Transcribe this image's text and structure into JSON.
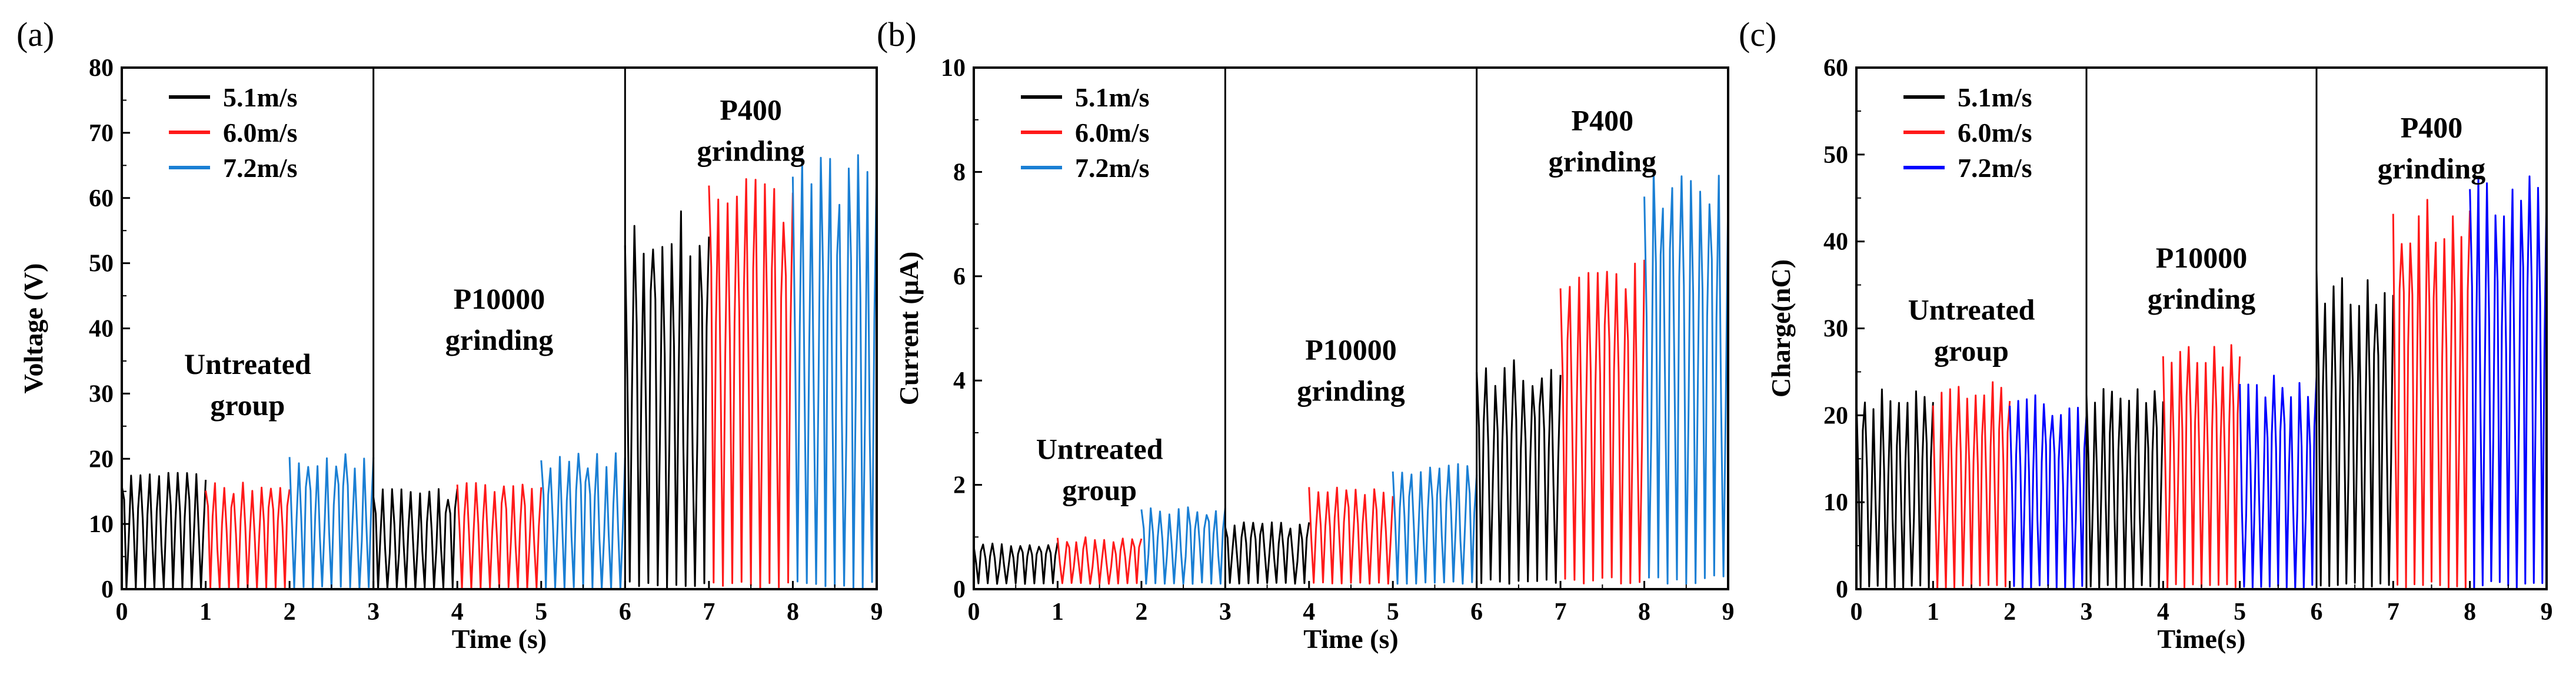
{
  "chart_data": [
    {
      "panel_label": "(a)",
      "type": "line",
      "title": "",
      "xlabel": "Time (s)",
      "ylabel": "Voltage (V)",
      "xlim": [
        0,
        9
      ],
      "ylim": [
        0,
        80
      ],
      "x_ticks": [
        "0",
        "1",
        "2",
        "3",
        "4",
        "5",
        "6",
        "7",
        "8",
        "9"
      ],
      "y_ticks": [
        "0",
        "10",
        "20",
        "30",
        "40",
        "50",
        "60",
        "70",
        "80"
      ],
      "group_dividers": [
        3,
        6
      ],
      "group_labels": [
        {
          "lines": [
            "Untreated",
            "group"
          ],
          "x": 1.5,
          "y": 33
        },
        {
          "lines": [
            "P10000",
            "grinding"
          ],
          "x": 4.5,
          "y": 43
        },
        {
          "lines": [
            "P400",
            "grinding"
          ],
          "x": 7.5,
          "y": 72
        }
      ],
      "legend": {
        "position": "top-left",
        "entries": [
          {
            "name": "5.1m/s",
            "color": "#000000"
          },
          {
            "name": "6.0m/s",
            "color": "#ff1a1a"
          },
          {
            "name": "7.2m/s",
            "color": "#1a7fd4"
          }
        ]
      },
      "series": [
        {
          "name": "5.1m/s",
          "group": "Untreated group",
          "x_range": [
            0,
            1
          ],
          "min": 0,
          "peak": 18,
          "color": "#000000"
        },
        {
          "name": "6.0m/s",
          "group": "Untreated group",
          "x_range": [
            1,
            2
          ],
          "min": 0,
          "peak": 16.5,
          "color": "#ff1a1a"
        },
        {
          "name": "7.2m/s",
          "group": "Untreated group",
          "x_range": [
            2,
            3
          ],
          "min": 0,
          "peak": 21,
          "color": "#1a7fd4"
        },
        {
          "name": "5.1m/s",
          "group": "P10000 grinding",
          "x_range": [
            3,
            4
          ],
          "min": 0,
          "peak": 15.5,
          "color": "#000000"
        },
        {
          "name": "6.0m/s",
          "group": "P10000 grinding",
          "x_range": [
            4,
            5
          ],
          "min": 0,
          "peak": 16.5,
          "color": "#ff1a1a"
        },
        {
          "name": "7.2m/s",
          "group": "P10000 grinding",
          "x_range": [
            5,
            6
          ],
          "min": 0,
          "peak": 21,
          "color": "#1a7fd4"
        },
        {
          "name": "5.1m/s",
          "group": "P400 grinding",
          "x_range": [
            6,
            7
          ],
          "min": 0,
          "peak": 58,
          "color": "#000000"
        },
        {
          "name": "6.0m/s",
          "group": "P400 grinding",
          "x_range": [
            7,
            8
          ],
          "min": 0,
          "peak": 63,
          "color": "#ff1a1a"
        },
        {
          "name": "7.2m/s",
          "group": "P400 grinding",
          "x_range": [
            8,
            9
          ],
          "min": 0,
          "peak": 67,
          "color": "#1a7fd4"
        }
      ]
    },
    {
      "panel_label": "(b)",
      "type": "line",
      "title": "",
      "xlabel": "Time (s)",
      "ylabel": "Current (μA)",
      "xlim": [
        0,
        9
      ],
      "ylim": [
        0,
        10
      ],
      "x_ticks": [
        "0",
        "1",
        "2",
        "3",
        "4",
        "5",
        "6",
        "7",
        "8",
        "9"
      ],
      "y_ticks": [
        "0",
        "2",
        "4",
        "6",
        "8",
        "10"
      ],
      "group_dividers": [
        3,
        6
      ],
      "group_labels": [
        {
          "lines": [
            "Untreated",
            "group"
          ],
          "x": 1.5,
          "y": 2.5
        },
        {
          "lines": [
            "P10000",
            "grinding"
          ],
          "x": 4.5,
          "y": 4.4
        },
        {
          "lines": [
            "P400",
            "grinding"
          ],
          "x": 7.5,
          "y": 8.8
        }
      ],
      "legend": {
        "position": "top-left",
        "entries": [
          {
            "name": "5.1m/s",
            "color": "#000000"
          },
          {
            "name": "6.0m/s",
            "color": "#ff1a1a"
          },
          {
            "name": "7.2m/s",
            "color": "#1a7fd4"
          }
        ]
      },
      "series": [
        {
          "name": "5.1m/s",
          "group": "Untreated group",
          "x_range": [
            0,
            1
          ],
          "min": 0.1,
          "peak": 0.9,
          "color": "#000000"
        },
        {
          "name": "6.0m/s",
          "group": "Untreated group",
          "x_range": [
            1,
            2
          ],
          "min": 0.1,
          "peak": 1.0,
          "color": "#ff1a1a"
        },
        {
          "name": "7.2m/s",
          "group": "Untreated group",
          "x_range": [
            2,
            3
          ],
          "min": 0.1,
          "peak": 1.6,
          "color": "#1a7fd4"
        },
        {
          "name": "5.1m/s",
          "group": "P10000 grinding",
          "x_range": [
            3,
            4
          ],
          "min": 0.1,
          "peak": 1.3,
          "color": "#000000"
        },
        {
          "name": "6.0m/s",
          "group": "P10000 grinding",
          "x_range": [
            4,
            5
          ],
          "min": 0.1,
          "peak": 2.0,
          "color": "#ff1a1a"
        },
        {
          "name": "7.2m/s",
          "group": "P10000 grinding",
          "x_range": [
            5,
            6
          ],
          "min": 0.1,
          "peak": 2.4,
          "color": "#1a7fd4"
        },
        {
          "name": "5.1m/s",
          "group": "P400 grinding",
          "x_range": [
            6,
            7
          ],
          "min": 0.1,
          "peak": 4.4,
          "color": "#000000"
        },
        {
          "name": "6.0m/s",
          "group": "P400 grinding",
          "x_range": [
            7,
            8
          ],
          "min": 0.1,
          "peak": 6.5,
          "color": "#ff1a1a"
        },
        {
          "name": "7.2m/s",
          "group": "P400 grinding",
          "x_range": [
            8,
            9
          ],
          "min": 0.1,
          "peak": 8.2,
          "color": "#1a7fd4"
        }
      ]
    },
    {
      "panel_label": "(c)",
      "type": "line",
      "title": "",
      "xlabel": "Time(s)",
      "ylabel": "Charge(nC)",
      "xlim": [
        0,
        9
      ],
      "ylim": [
        0,
        60
      ],
      "x_ticks": [
        "0",
        "1",
        "2",
        "3",
        "4",
        "5",
        "6",
        "7",
        "8",
        "9"
      ],
      "y_ticks": [
        "0",
        "10",
        "20",
        "30",
        "40",
        "50",
        "60"
      ],
      "group_dividers": [
        3,
        6
      ],
      "group_labels": [
        {
          "lines": [
            "Untreated",
            "group"
          ],
          "x": 1.5,
          "y": 31
        },
        {
          "lines": [
            "P10000",
            "grinding"
          ],
          "x": 4.5,
          "y": 37
        },
        {
          "lines": [
            "P400",
            "grinding"
          ],
          "x": 7.5,
          "y": 52
        }
      ],
      "legend": {
        "position": "top-left",
        "entries": [
          {
            "name": "5.1m/s",
            "color": "#000000"
          },
          {
            "name": "6.0m/s",
            "color": "#ff1a1a"
          },
          {
            "name": "7.2m/s",
            "color": "#0000ff"
          }
        ]
      },
      "series": [
        {
          "name": "5.1m/s",
          "group": "Untreated group",
          "x_range": [
            0,
            1
          ],
          "min": 0,
          "peak": 23,
          "color": "#000000"
        },
        {
          "name": "6.0m/s",
          "group": "Untreated group",
          "x_range": [
            1,
            2
          ],
          "min": 0,
          "peak": 24,
          "color": "#ff1a1a"
        },
        {
          "name": "7.2m/s",
          "group": "Untreated group",
          "x_range": [
            2,
            3
          ],
          "min": 0,
          "peak": 22.5,
          "color": "#0000ff"
        },
        {
          "name": "5.1m/s",
          "group": "P10000 grinding",
          "x_range": [
            3,
            4
          ],
          "min": 0,
          "peak": 24,
          "color": "#000000"
        },
        {
          "name": "6.0m/s",
          "group": "P10000 grinding",
          "x_range": [
            4,
            5
          ],
          "min": 0,
          "peak": 29,
          "color": "#ff1a1a"
        },
        {
          "name": "7.2m/s",
          "group": "P10000 grinding",
          "x_range": [
            5,
            6
          ],
          "min": 0,
          "peak": 25,
          "color": "#0000ff"
        },
        {
          "name": "5.1m/s",
          "group": "P400 grinding",
          "x_range": [
            6,
            7
          ],
          "min": 0,
          "peak": 37,
          "color": "#000000"
        },
        {
          "name": "6.0m/s",
          "group": "P400 grinding",
          "x_range": [
            7,
            8
          ],
          "min": 0,
          "peak": 45,
          "color": "#ff1a1a"
        },
        {
          "name": "7.2m/s",
          "group": "P400 grinding",
          "x_range": [
            8,
            9
          ],
          "min": 0,
          "peak": 48,
          "color": "#0000ff"
        }
      ]
    }
  ]
}
